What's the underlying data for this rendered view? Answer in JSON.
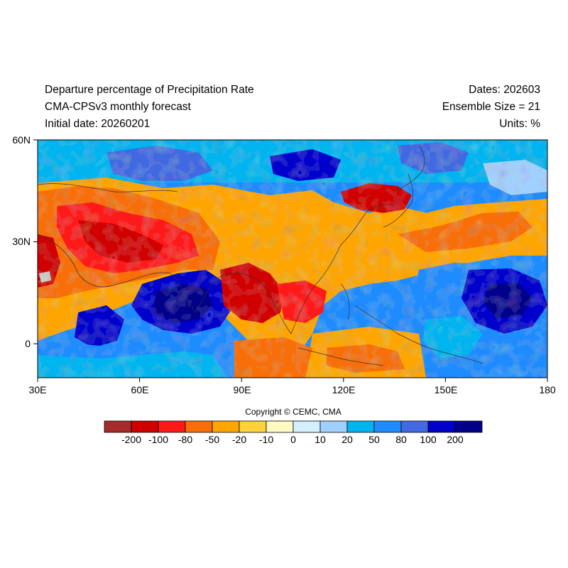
{
  "header": {
    "title": "Departure percentage of Precipitation Rate",
    "model": "CMA-CPSv3 monthly forecast",
    "initial_date": "Initial date: 20260201",
    "dates": "Dates: 202603",
    "ensemble": "Ensemble Size = 21",
    "units": "Units: %"
  },
  "map": {
    "lon_range": [
      30,
      180
    ],
    "lat_range": [
      -10,
      60
    ],
    "x_ticks": [
      "30E",
      "60E",
      "90E",
      "120E",
      "150E",
      "180"
    ],
    "y_ticks": [
      "60N",
      "30N",
      "0"
    ]
  },
  "colorbar": {
    "colors": [
      "#a52a2a",
      "#d10000",
      "#ff1a1a",
      "#f86e08",
      "#ffa500",
      "#ffd23c",
      "#fff9c4",
      "#d4f0ff",
      "#a0d0ff",
      "#00b4f0",
      "#1e8cff",
      "#4169e1",
      "#0000cd",
      "#00008b"
    ],
    "labels": [
      "-200",
      "-100",
      "-80",
      "-50",
      "-20",
      "-10",
      "0",
      "10",
      "20",
      "50",
      "80",
      "100",
      "200"
    ]
  },
  "copyright": "Copyright © CEMC, CMA"
}
